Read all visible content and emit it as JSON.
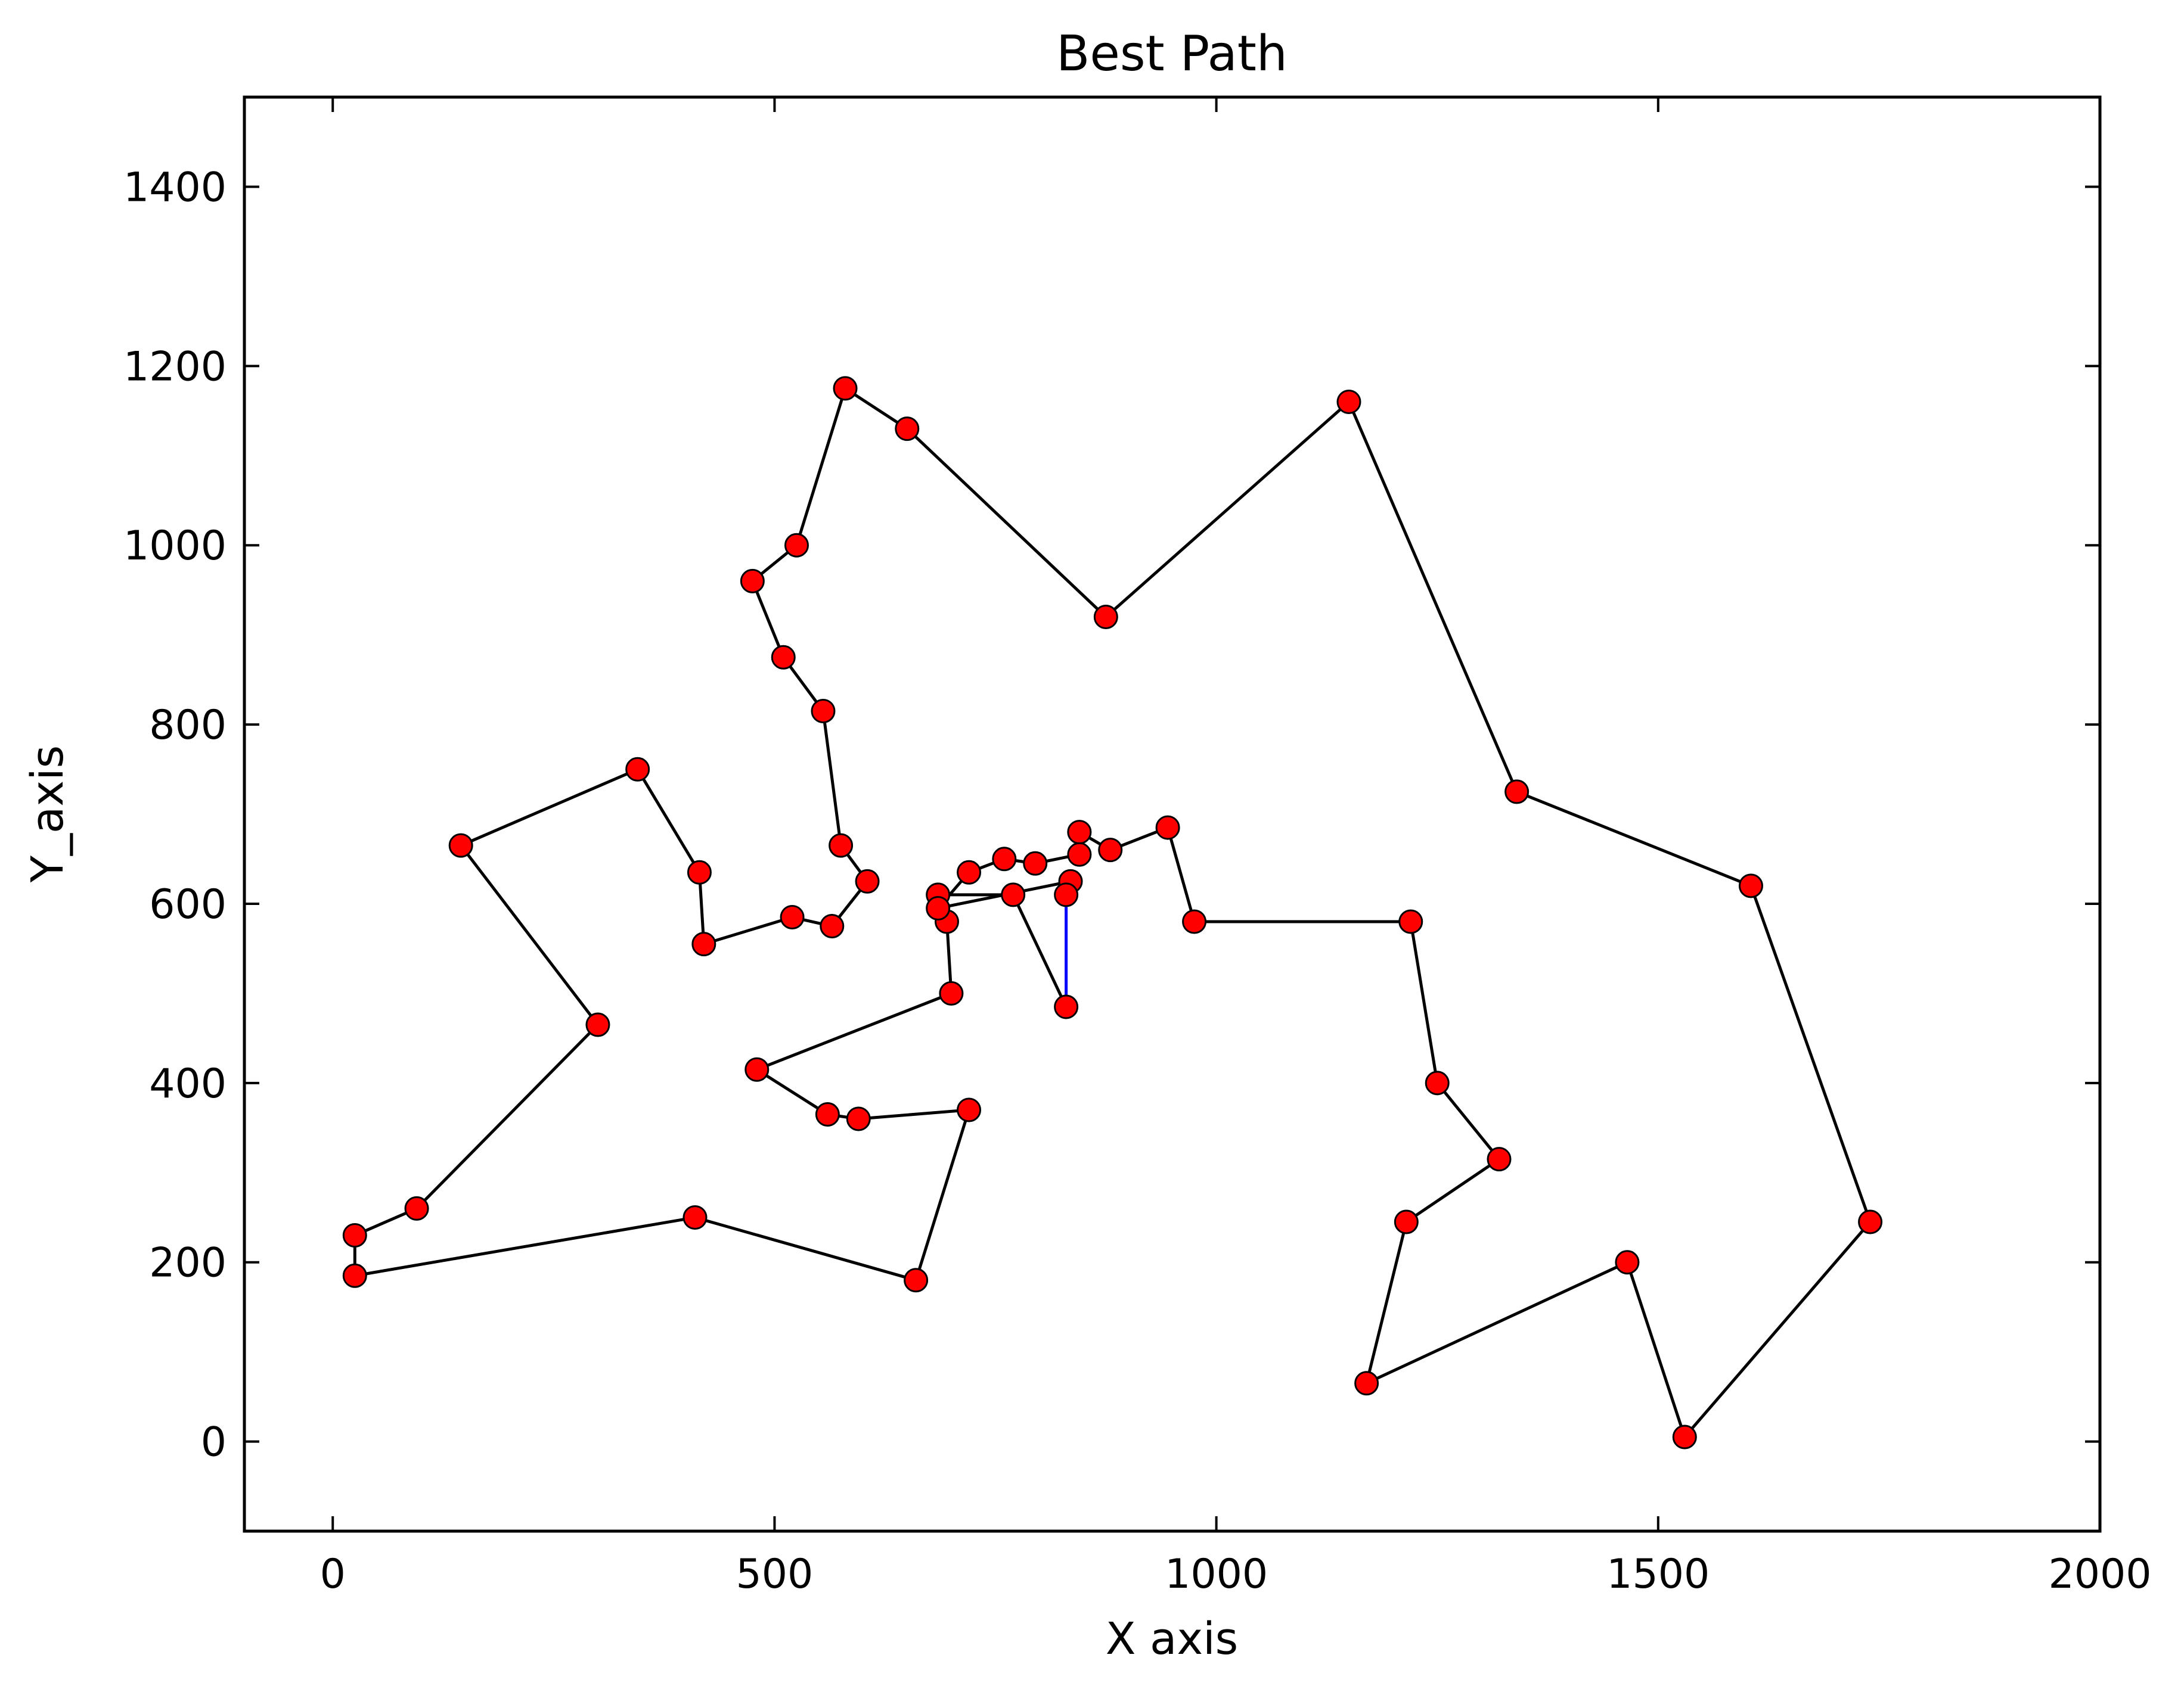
{
  "chart_data": {
    "type": "line",
    "title": "Best Path",
    "xlabel": "X axis",
    "ylabel": "Y_axis",
    "xlim": [
      -100,
      2000
    ],
    "ylim": [
      -100,
      1500
    ],
    "xticks": [
      0,
      500,
      1000,
      1500,
      2000
    ],
    "yticks": [
      0,
      200,
      400,
      600,
      800,
      1000,
      1200,
      1400
    ],
    "grid": false,
    "legend": "none",
    "colors": {
      "path": "#000000",
      "closing_segment": "#0000ff",
      "marker_fill": "#ff0000",
      "marker_edge": "#000000"
    },
    "series": [
      {
        "points": [
          [
            830,
            485
          ],
          [
            770,
            610
          ],
          [
            685,
            610
          ],
          [
            695,
            580
          ],
          [
            700,
            500
          ],
          [
            480,
            415
          ],
          [
            560,
            365
          ],
          [
            595,
            360
          ],
          [
            720,
            370
          ],
          [
            660,
            180
          ],
          [
            410,
            250
          ],
          [
            25,
            185
          ],
          [
            25,
            230
          ],
          [
            95,
            260
          ],
          [
            300,
            465
          ],
          [
            145,
            665
          ],
          [
            345,
            750
          ],
          [
            415,
            635
          ],
          [
            420,
            555
          ],
          [
            520,
            585
          ],
          [
            565,
            575
          ],
          [
            605,
            625
          ],
          [
            575,
            665
          ],
          [
            555,
            815
          ],
          [
            510,
            875
          ],
          [
            475,
            960
          ],
          [
            525,
            1000
          ],
          [
            580,
            1175
          ],
          [
            650,
            1130
          ],
          [
            875,
            920
          ],
          [
            1150,
            1160
          ],
          [
            1340,
            725
          ],
          [
            1605,
            620
          ],
          [
            1740,
            245
          ],
          [
            1530,
            5
          ],
          [
            1465,
            200
          ],
          [
            1170,
            65
          ],
          [
            1215,
            245
          ],
          [
            1320,
            315
          ],
          [
            1250,
            400
          ],
          [
            1220,
            580
          ],
          [
            975,
            580
          ],
          [
            945,
            685
          ],
          [
            880,
            660
          ],
          [
            845,
            680
          ],
          [
            845,
            655
          ],
          [
            795,
            645
          ],
          [
            760,
            650
          ],
          [
            720,
            635
          ],
          [
            685,
            595
          ],
          [
            835,
            625
          ],
          [
            830,
            610
          ]
        ],
        "closing_segment": [
          [
            830,
            610
          ],
          [
            830,
            485
          ]
        ]
      }
    ]
  }
}
